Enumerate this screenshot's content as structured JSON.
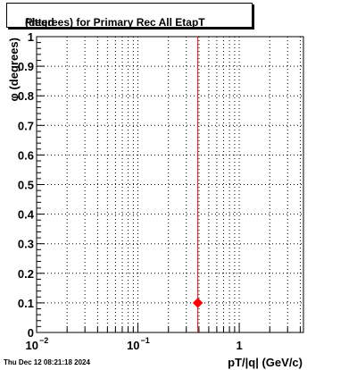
{
  "chart_data": {
    "type": "scatter",
    "title": "Fitted φ (degrees) for Primary Rec All EtapT",
    "title_parts": {
      "before": "Fitted",
      "symbol": "φ",
      "after": "(degrees) for Primary Rec All EtapT"
    },
    "xlabel": "pT/|q| (GeV/c)",
    "ylabel": "φ (degrees)",
    "xscale": "log",
    "xlim": [
      0.01,
      4.3
    ],
    "ylim": [
      0,
      1
    ],
    "x_tick_labels": [
      {
        "value": 0.01,
        "base": "10",
        "exp": "−2"
      },
      {
        "value": 0.1,
        "base": "10",
        "exp": "−1"
      },
      {
        "value": 1,
        "base": "1",
        "exp": ""
      }
    ],
    "y_ticks": [
      0,
      0.1,
      0.2,
      0.3,
      0.4,
      0.5,
      0.6,
      0.7,
      0.8,
      0.9,
      1
    ],
    "y_tick_labels": [
      "0",
      "0.1",
      "0.2",
      "0.3",
      "0.4",
      "0.5",
      "0.6",
      "0.7",
      "0.8",
      "0.9",
      "1"
    ],
    "grid": true,
    "series": [
      {
        "color": "#ff0000",
        "marker": "diamond",
        "points": [
          {
            "x": 0.39,
            "y": 0.1
          }
        ]
      }
    ],
    "vertical_lines": [
      {
        "x": 0.39,
        "color": "#ff0000"
      }
    ]
  },
  "footer": {
    "timestamp": "Thu Dec 12 08:21:18 2024"
  }
}
